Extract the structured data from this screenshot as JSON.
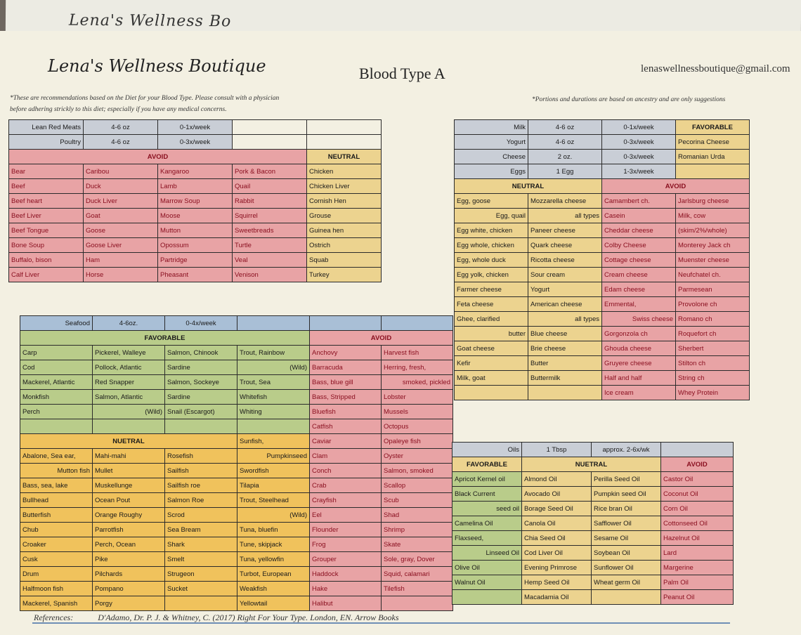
{
  "header": {
    "back_sheet_text": "Lena's Wellness Bo",
    "brand": "Lena's Wellness Boutique",
    "title": "Blood Type A",
    "email": "lenaswellnessboutique@gmail.com",
    "note_left_1": "*These are recommendations based on the Diet for your Blood Type.  Please consult with a physician",
    "note_left_2": "before adhering strickly to this diet; especially if you have any medical concerns.",
    "note_right": "*Portions and durations are based on ancestry and are only suggestions"
  },
  "meats": {
    "portion_rows": [
      [
        "Lean Red Meats",
        "4-6 oz",
        "0-1x/week",
        "",
        ""
      ],
      [
        "Poultry",
        "4-6 oz",
        "0-3x/week",
        "",
        ""
      ]
    ],
    "avoid_header": "AVOID",
    "neutral_header": "NEUTRAL",
    "rows": [
      [
        "Bear",
        "Caribou",
        "Kangaroo",
        "Pork & Bacon",
        "Chicken"
      ],
      [
        "Beef",
        "Duck",
        "Lamb",
        "Quail",
        "Chicken Liver"
      ],
      [
        "Beef heart",
        "Duck Liver",
        "Marrow Soup",
        "Rabbit",
        "Cornish Hen"
      ],
      [
        "Beef Liver",
        "Goat",
        "Moose",
        "Squirrel",
        "Grouse"
      ],
      [
        "Beef Tongue",
        "Goose",
        "Mutton",
        "Sweetbreads",
        "Guinea hen"
      ],
      [
        "Bone Soup",
        "Goose Liver",
        "Opossum",
        "Turtle",
        "Ostrich"
      ],
      [
        "Buffalo, bison",
        "Ham",
        "Partridge",
        "Veal",
        "Squab"
      ],
      [
        "Calf Liver",
        "Horse",
        "Pheasant",
        "Venison",
        "Turkey"
      ]
    ]
  },
  "dairy": {
    "portion_rows": [
      [
        "Milk",
        "4-6 oz",
        "0-1x/week"
      ],
      [
        "Yogurt",
        "4-6 oz",
        "0-3x/week"
      ],
      [
        "Cheese",
        "2 oz.",
        "0-3x/week"
      ],
      [
        "Eggs",
        "1 Egg",
        "1-3x/week"
      ]
    ],
    "favorable_header": "FAVORABLE",
    "favorable_items": [
      "Pecorina Cheese",
      "Romanian Urda",
      ""
    ],
    "neutral_header": "NEUTRAL",
    "avoid_header": "AVOID",
    "rows": [
      [
        "Egg, goose",
        "Mozzarella cheese",
        "Camambert ch.",
        "Jarlsburg cheese"
      ],
      [
        "Egg, quail",
        "all types",
        "Casein",
        "Milk, cow"
      ],
      [
        "Egg white, chicken",
        "Paneer cheese",
        "Cheddar cheese",
        "(skim/2%/whole)"
      ],
      [
        "Egg whole, chicken",
        "Quark cheese",
        "Colby Cheese",
        "Monterey Jack ch"
      ],
      [
        "Egg, whole duck",
        "Ricotta cheese",
        "Cottage cheese",
        "Muenster cheese"
      ],
      [
        "Egg yolk, chicken",
        "Sour cream",
        "Cream cheese",
        "Neufchatel ch."
      ],
      [
        "Farmer cheese",
        "Yogurt",
        "Edam cheese",
        "Parmesean"
      ],
      [
        "Feta cheese",
        "American cheese",
        "Emmental,",
        "Provolone ch"
      ],
      [
        "Ghee, clarified",
        "all types",
        "Swiss cheese",
        "Romano ch"
      ],
      [
        "butter",
        "Blue cheese",
        "Gorgonzola ch",
        "Roquefort ch"
      ],
      [
        "Goat cheese",
        "Brie cheese",
        "Ghouda cheese",
        "Sherbert"
      ],
      [
        "Kefir",
        "Butter",
        "Gruyere cheese",
        "Stilton ch"
      ],
      [
        "Milk, goat",
        "Buttermilk",
        "Half and half",
        "String ch"
      ],
      [
        "",
        "",
        "Ice cream",
        "Whey Protein"
      ]
    ]
  },
  "seafood": {
    "portion_row": [
      "Seafood",
      "4-6oz.",
      "0-4x/week",
      "",
      "",
      ""
    ],
    "favorable_header": "FAVORABLE",
    "avoid_header": "AVOID",
    "neutral_header": "NUETRAL",
    "favorable_rows": [
      [
        "Carp",
        "Pickerel, Walleye",
        "Salmon, Chinook",
        "Trout, Rainbow",
        "Anchovy",
        "Harvest fish"
      ],
      [
        "Cod",
        "Pollock, Atlantic",
        "Sardine",
        "(Wild)",
        "Barracuda",
        "Herring, fresh,"
      ],
      [
        "Mackerel, Atlantic",
        "Red Snapper",
        "Salmon, Sockeye",
        "Trout, Sea",
        "Bass, blue gill",
        "smoked, pickled"
      ],
      [
        "Monkfish",
        "Salmon, Atlantic",
        "Sardine",
        "Whitefish",
        "Bass, Stripped",
        "Lobster"
      ],
      [
        "Perch",
        "(Wild)",
        "Snail (Escargot)",
        "Whiting",
        "Bluefish",
        "Mussels"
      ],
      [
        "",
        "",
        "",
        "",
        "Catfish",
        "Octopus"
      ]
    ],
    "neutral_header_row": [
      "Sunfish,",
      "Caviar",
      "Opaleye fish"
    ],
    "neutral_rows": [
      [
        "Abalone, Sea ear,",
        "Mahi-mahi",
        "Rosefish",
        "Pumpkinseed",
        "Clam",
        "Oyster"
      ],
      [
        "Mutton fish",
        "Mullet",
        "Sailfish",
        "Swordfish",
        "Conch",
        "Salmon, smoked"
      ],
      [
        "Bass, sea, lake",
        "Muskellunge",
        "Sailfish roe",
        "Tilapia",
        "Crab",
        "Scallop"
      ],
      [
        "Bullhead",
        "Ocean Pout",
        "Salmon Roe",
        "Trout, Steelhead",
        "Crayfish",
        "Scub"
      ],
      [
        "Butterfish",
        "Orange Roughy",
        "Scrod",
        "(Wild)",
        "Eel",
        "Shad"
      ],
      [
        "Chub",
        "Parrotfish",
        "Sea Bream",
        "Tuna, bluefin",
        "Flounder",
        "Shrimp"
      ],
      [
        "Croaker",
        "Perch, Ocean",
        "Shark",
        "Tune, skipjack",
        "Frog",
        "Skate"
      ],
      [
        "Cusk",
        "Pike",
        "Smelt",
        "Tuna, yellowfin",
        "Grouper",
        "Sole, gray, Dover"
      ],
      [
        "Drum",
        "Pilchards",
        "Strugeon",
        "Turbot, European",
        "Haddock",
        "Squid, calamari"
      ],
      [
        "Halfmoon fish",
        "Pompano",
        "Sucket",
        "Weakfish",
        "Hake",
        "Tilefish"
      ],
      [
        "Mackerel, Spanish",
        "Porgy",
        "",
        "Yellowtail",
        "Halibut",
        ""
      ]
    ]
  },
  "oils": {
    "portion_row": [
      "Oils",
      "1 Tbsp",
      "approx. 2-6x/wk",
      ""
    ],
    "favorable_header": "FAVORABLE",
    "neutral_header": "NUETRAL",
    "avoid_header": "AVOID",
    "rows": [
      [
        "Apricot Kernel oil",
        "Almond Oil",
        "Perilla Seed Oil",
        "Castor Oil"
      ],
      [
        "Black Current",
        "Avocado Oil",
        "Pumpkin seed Oil",
        "Coconut Oil"
      ],
      [
        "seed oil",
        "Borage Seed Oil",
        "Rice bran Oil",
        "Corn Oil"
      ],
      [
        "Camelina Oil",
        "Canola Oil",
        "Safflower Oil",
        "Cottonseed Oil"
      ],
      [
        "Flaxseed,",
        "Chia Seed Oil",
        "Sesame Oil",
        "Hazelnut Oil"
      ],
      [
        "Linseed Oil",
        "Cod Liver Oil",
        "Soybean Oil",
        "Lard"
      ],
      [
        "Olive Oil",
        "Evening Primrose",
        "Sunflower Oil",
        "Margerine"
      ],
      [
        "Walnut Oil",
        "Hemp Seed Oil",
        "Wheat germ Oil",
        "Palm Oil"
      ],
      [
        "",
        "Macadamia Oil",
        "",
        "Peanut Oil"
      ]
    ]
  },
  "references": {
    "label": "References:",
    "citation": "D'Adamo, Dr. P. J. & Whitney, C. (2017) Right For Your Type. London, EN. Arrow Books"
  },
  "colors": {
    "avoid": "#e8a3a5",
    "neutral": "#ecd38f",
    "neutral_seafood": "#f0c25c",
    "favorable": "#b9cc8a",
    "portion": "#c9ced6",
    "paper": "#f3f0e2"
  }
}
